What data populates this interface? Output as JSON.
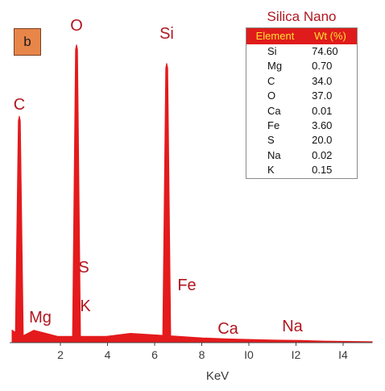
{
  "panel_label": "b",
  "chart_data": {
    "type": "line",
    "title": "",
    "xlabel": "KeV",
    "ylabel": "",
    "xlim": [
      0,
      15
    ],
    "ylim": [
      0,
      100
    ],
    "grid": false,
    "legend": "none",
    "line_color": "#e41a1c",
    "x_ticks": [
      {
        "value": 2,
        "label": "2"
      },
      {
        "value": 4,
        "label": "4"
      },
      {
        "value": 6,
        "label": "6"
      },
      {
        "value": 8,
        "label": "8"
      },
      {
        "value": 10,
        "label": "I0"
      },
      {
        "value": 12,
        "label": "I2"
      },
      {
        "value": 14,
        "label": "I4"
      }
    ],
    "peaks": [
      {
        "element": "C",
        "energy": 0.28,
        "intensity": 73
      },
      {
        "element": "O",
        "energy": 0.53,
        "intensity": 96
      },
      {
        "element": "Si",
        "energy": 1.74,
        "intensity": 90
      }
    ],
    "baseline": [
      [
        0.1,
        4
      ],
      [
        0.5,
        2
      ],
      [
        1.0,
        4
      ],
      [
        1.5,
        3
      ],
      [
        2.0,
        2
      ],
      [
        3.0,
        2
      ],
      [
        4.0,
        2
      ],
      [
        5.0,
        3
      ],
      [
        6.0,
        2.5
      ],
      [
        7.0,
        2
      ],
      [
        8.0,
        1.5
      ],
      [
        9.0,
        1.2
      ],
      [
        10.0,
        1
      ],
      [
        11.0,
        0.8
      ],
      [
        12.0,
        0.7
      ],
      [
        13.0,
        0.5
      ],
      [
        14.0,
        0.4
      ],
      [
        15.0,
        0.3
      ]
    ],
    "annotations": [
      {
        "text": "C",
        "energy": 0.2,
        "y": 72
      },
      {
        "text": "O",
        "energy": 2.55,
        "y": 98
      },
      {
        "text": "Si",
        "energy": 6.3,
        "y": 92
      },
      {
        "text": "S",
        "energy": 2.9,
        "y": 30
      },
      {
        "text": "K",
        "energy": 2.8,
        "y": 15
      },
      {
        "text": "Mg",
        "energy": 0.9,
        "y": 9
      },
      {
        "text": "Fe",
        "energy": 7.2,
        "y": 24
      },
      {
        "text": "Ca",
        "energy": 8.9,
        "y": 5
      },
      {
        "text": "Na",
        "energy": 11.5,
        "y": 6
      }
    ]
  },
  "composition": {
    "title": "Silica Nano",
    "header": {
      "element": "Element",
      "wt": "Wt (%)"
    },
    "rows": [
      {
        "element": "Si",
        "wt": "74.60"
      },
      {
        "element": "Mg",
        "wt": "0.70"
      },
      {
        "element": "C",
        "wt": "34.0"
      },
      {
        "element": "O",
        "wt": "37.0"
      },
      {
        "element": "Ca",
        "wt": "0.01"
      },
      {
        "element": "Fe",
        "wt": "3.60"
      },
      {
        "element": "S",
        "wt": "20.0"
      },
      {
        "element": "Na",
        "wt": "0.02"
      },
      {
        "element": "K",
        "wt": "0.15"
      }
    ]
  }
}
